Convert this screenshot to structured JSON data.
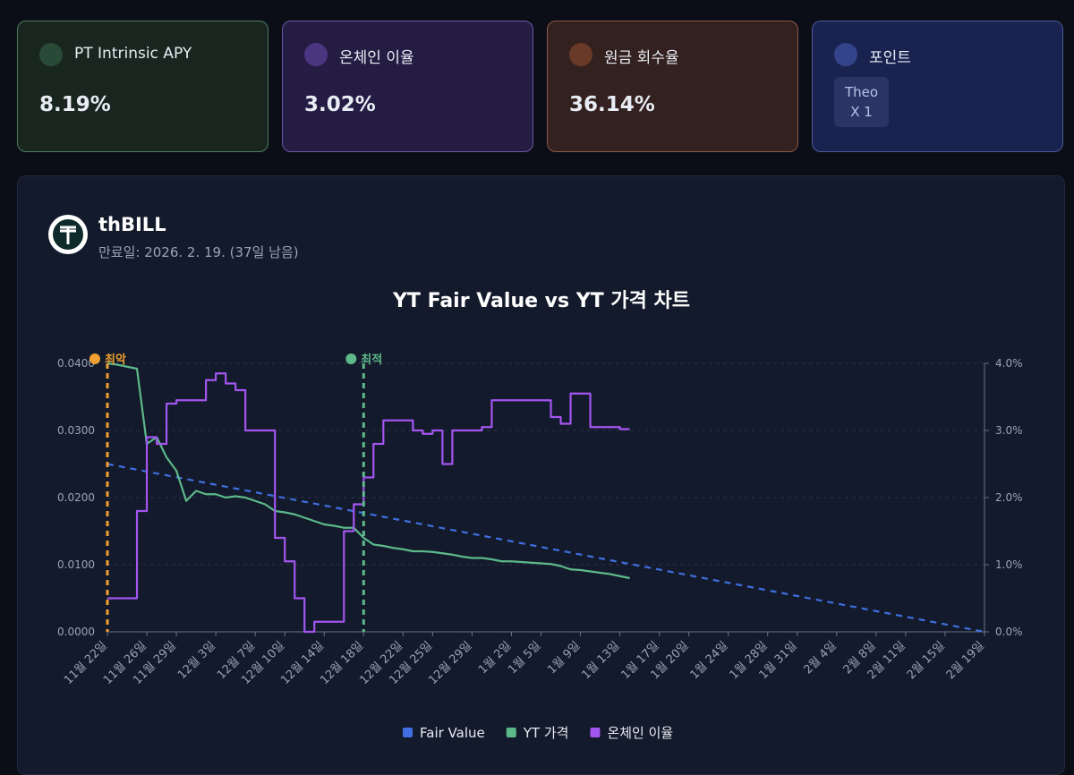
{
  "cards": [
    {
      "title": "PT Intrinsic APY",
      "value": "8.19%"
    },
    {
      "title": "온체인 이율",
      "value": "3.02%"
    },
    {
      "title": "원금 회수율",
      "value": "36.14%"
    },
    {
      "title": "포인트",
      "badge": [
        "Theo",
        "X 1"
      ]
    }
  ],
  "asset": {
    "name": "thBILL",
    "maturity": "만료일: 2026. 2. 19. (37일 남음)"
  },
  "chart_data": {
    "type": "line",
    "title": "YT Fair Value vs YT 가격 차트",
    "xlim": [
      "11월 22일",
      "2월 19일"
    ],
    "xticks": [
      "11월 22일",
      "11월 26일",
      "11월 29일",
      "12월 3일",
      "12월 7일",
      "12월 10일",
      "12월 14일",
      "12월 18일",
      "12월 22일",
      "12월 25일",
      "12월 29일",
      "1월 2일",
      "1월 5일",
      "1월 9일",
      "1월 13일",
      "1월 17일",
      "1월 20일",
      "1월 24일",
      "1월 28일",
      "1월 31일",
      "2월 4일",
      "2월 8일",
      "2월 11일",
      "2월 15일",
      "2월 19일"
    ],
    "ylim": [
      0,
      0.04
    ],
    "yticks": [
      {
        "value": 0,
        "label": "0.0000"
      },
      {
        "value": 0.01,
        "label": "0.0100"
      },
      {
        "value": 0.02,
        "label": "0.0200"
      },
      {
        "value": 0.03,
        "label": "0.0300"
      },
      {
        "value": 0.04,
        "label": "0.0400"
      }
    ],
    "y2lim": [
      0,
      4
    ],
    "y2ticks": [
      {
        "value": 0,
        "label": "0.0%"
      },
      {
        "value": 1,
        "label": "1.0%"
      },
      {
        "value": 2,
        "label": "2.0%"
      },
      {
        "value": 3,
        "label": "3.0%"
      },
      {
        "value": 4,
        "label": "4.0%"
      }
    ],
    "grid": true,
    "legend": "bottom",
    "x": [
      "11월 22일",
      "11월 23일",
      "11월 24일",
      "11월 25일",
      "11월 26일",
      "11월 27일",
      "11월 28일",
      "11월 29일",
      "11월 30일",
      "12월 1일",
      "12월 2일",
      "12월 3일",
      "12월 4일",
      "12월 5일",
      "12월 6일",
      "12월 7일",
      "12월 8일",
      "12월 9일",
      "12월 10일",
      "12월 11일",
      "12월 12일",
      "12월 13일",
      "12월 14일",
      "12월 15일",
      "12월 16일",
      "12월 17일",
      "12월 18일",
      "12월 19일",
      "12월 20일",
      "12월 21일",
      "12월 22일",
      "12월 23일",
      "12월 24일",
      "12월 25일",
      "12월 26일",
      "12월 27일",
      "12월 28일",
      "12월 29일",
      "12월 30일",
      "12월 31일",
      "1월 1일",
      "1월 2일",
      "1월 3일",
      "1월 4일",
      "1월 5일",
      "1월 6일",
      "1월 7일",
      "1월 8일",
      "1월 9일",
      "1월 10일",
      "1월 11일",
      "1월 12일",
      "1월 13일",
      "1월 14일"
    ],
    "series": [
      {
        "name": "Fair Value",
        "color": "#3f6fe0",
        "dashed": true,
        "x": [
          "11월 22일",
          "2월 19일"
        ],
        "values": [
          0.025,
          0
        ]
      },
      {
        "name": "YT 가격",
        "color": "#5db98a",
        "values": [
          0.04,
          0.0398,
          0.0395,
          0.0392,
          0.028,
          0.029,
          0.026,
          0.024,
          0.0195,
          0.021,
          0.0205,
          0.0205,
          0.02,
          0.0202,
          0.02,
          0.0195,
          0.019,
          0.018,
          0.0178,
          0.0175,
          0.017,
          0.0165,
          0.016,
          0.0158,
          0.0155,
          0.0155,
          0.014,
          0.013,
          0.0128,
          0.0125,
          0.0123,
          0.012,
          0.012,
          0.0119,
          0.0117,
          0.0115,
          0.0112,
          0.011,
          0.011,
          0.0108,
          0.0105,
          0.0105,
          0.0104,
          0.0103,
          0.0102,
          0.0101,
          0.0098,
          0.0093,
          0.0092,
          0.009,
          0.0088,
          0.0086,
          0.0083,
          0.008
        ]
      },
      {
        "name": "온체인 이율",
        "color": "#a355f0",
        "axis": "y2",
        "step": true,
        "values": [
          0.5,
          0.5,
          0.5,
          1.8,
          2.9,
          2.8,
          3.4,
          3.45,
          3.45,
          3.45,
          3.75,
          3.85,
          3.7,
          3.6,
          3.0,
          3.0,
          3.0,
          1.4,
          1.05,
          0.5,
          0.0,
          0.15,
          0.15,
          0.15,
          1.5,
          1.9,
          2.3,
          2.8,
          3.15,
          3.15,
          3.15,
          3.0,
          2.95,
          3.0,
          2.5,
          3.0,
          3.0,
          3.0,
          3.05,
          3.45,
          3.45,
          3.45,
          3.45,
          3.45,
          3.45,
          3.2,
          3.1,
          3.55,
          3.55,
          3.05,
          3.05,
          3.05,
          3.02,
          3.02
        ]
      }
    ],
    "annotations": [
      {
        "label": "최악",
        "x": "11월 22일",
        "color": "#f0a030"
      },
      {
        "label": "최적",
        "x": "12월 18일",
        "color": "#5db98a"
      }
    ]
  }
}
